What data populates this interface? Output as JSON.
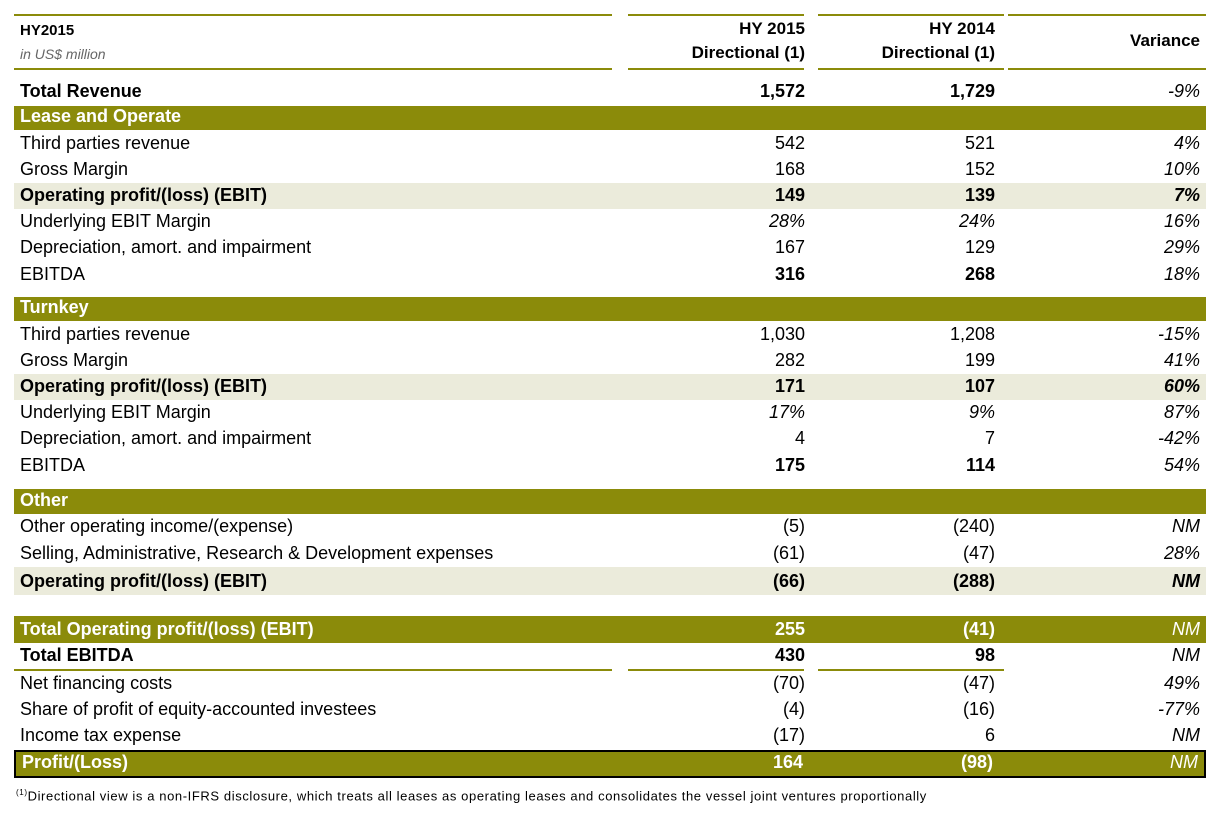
{
  "header": {
    "title": "HY2015",
    "subtitle": "in US$ million",
    "col1_line1": "HY 2015",
    "col1_line2": "Directional (1)",
    "col2_line1": "HY 2014",
    "col2_line2": "Directional (1)",
    "col3": "Variance"
  },
  "rows": {
    "total_revenue": {
      "label": "Total Revenue",
      "hy2015": "1,572",
      "hy2014": "1,729",
      "variance": "-9%"
    },
    "lease_section": {
      "label": "Lease and Operate"
    },
    "lo_third": {
      "label": "Third parties revenue",
      "hy2015": "542",
      "hy2014": "521",
      "variance": "4%"
    },
    "lo_gm": {
      "label": "Gross Margin",
      "hy2015": "168",
      "hy2014": "152",
      "variance": "10%"
    },
    "lo_ebit": {
      "label": "Operating profit/(loss) (EBIT)",
      "hy2015": "149",
      "hy2014": "139",
      "variance": "7%"
    },
    "lo_margin": {
      "label": "Underlying EBIT Margin",
      "hy2015": "28%",
      "hy2014": "24%",
      "variance": "16%"
    },
    "lo_dep": {
      "label": "Depreciation, amort. and impairment",
      "hy2015": "167",
      "hy2014": "129",
      "variance": "29%"
    },
    "lo_ebitda": {
      "label": "EBITDA",
      "hy2015": "316",
      "hy2014": "268",
      "variance": "18%"
    },
    "turnkey_section": {
      "label": "Turnkey"
    },
    "tk_third": {
      "label": "Third parties revenue",
      "hy2015": "1,030",
      "hy2014": "1,208",
      "variance": "-15%"
    },
    "tk_gm": {
      "label": "Gross Margin",
      "hy2015": "282",
      "hy2014": "199",
      "variance": "41%"
    },
    "tk_ebit": {
      "label": "Operating profit/(loss) (EBIT)",
      "hy2015": "171",
      "hy2014": "107",
      "variance": "60%"
    },
    "tk_margin": {
      "label": "Underlying EBIT Margin",
      "hy2015": "17%",
      "hy2014": "9%",
      "variance": "87%"
    },
    "tk_dep": {
      "label": "Depreciation, amort. and impairment",
      "hy2015": "4",
      "hy2014": "7",
      "variance": "-42%"
    },
    "tk_ebitda": {
      "label": "EBITDA",
      "hy2015": "175",
      "hy2014": "114",
      "variance": "54%"
    },
    "other_section": {
      "label": "Other"
    },
    "ot_income": {
      "label": "Other operating income/(expense)",
      "hy2015": "(5)",
      "hy2014": "(240)",
      "variance": "NM"
    },
    "ot_sga": {
      "label": "Selling, Administrative, Research & Development expenses",
      "hy2015": "(61)",
      "hy2014": "(47)",
      "variance": "28%"
    },
    "ot_ebit": {
      "label": "Operating profit/(loss) (EBIT)",
      "hy2015": "(66)",
      "hy2014": "(288)",
      "variance": "NM"
    },
    "total_ebit": {
      "label": "Total Operating profit/(loss) (EBIT)",
      "hy2015": "255",
      "hy2014": "(41)",
      "variance": "NM"
    },
    "total_ebitda": {
      "label": "Total EBITDA",
      "hy2015": "430",
      "hy2014": "98",
      "variance": "NM"
    },
    "net_fin": {
      "label": "Net financing costs",
      "hy2015": "(70)",
      "hy2014": "(47)",
      "variance": "49%"
    },
    "share_profit": {
      "label": "Share of profit of equity-accounted investees",
      "hy2015": "(4)",
      "hy2014": "(16)",
      "variance": "-77%"
    },
    "income_tax": {
      "label": "Income tax expense",
      "hy2015": "(17)",
      "hy2014": "6",
      "variance": "NM"
    },
    "profit": {
      "label": "Profit/(Loss)",
      "hy2015": "164",
      "hy2014": "(98)",
      "variance": "NM"
    }
  },
  "footnote": {
    "marker": "(1)",
    "text": "Directional view is a non-IFRS disclosure, which treats all leases as operating leases and consolidates the vessel joint ventures proportionally"
  },
  "colors": {
    "accent": "#8b8b0a",
    "shade": "#ebebdb"
  }
}
